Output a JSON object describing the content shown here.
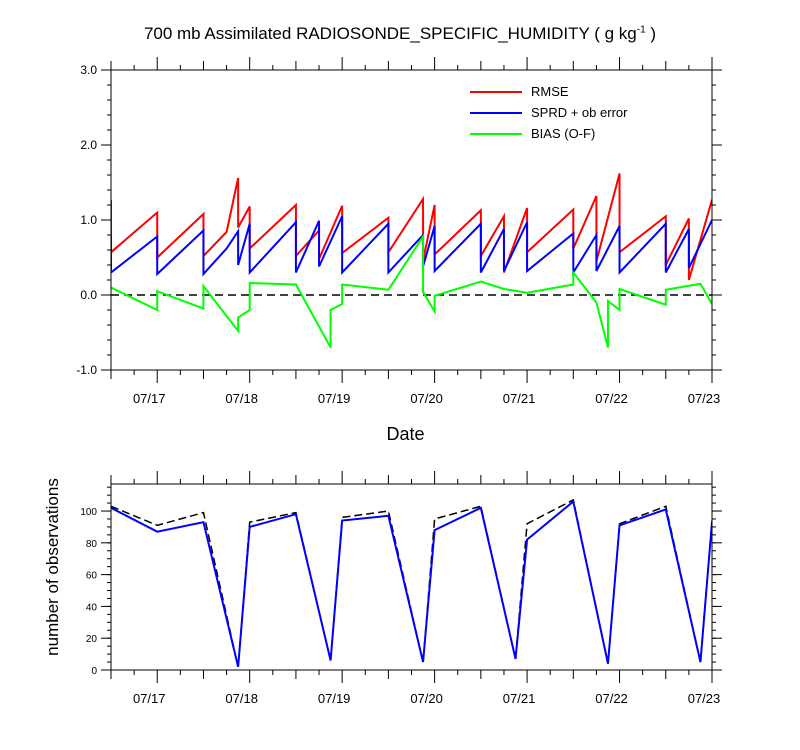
{
  "chart_data": [
    {
      "type": "line",
      "title": {
        "prefix": "700 mb Assimilated RADIOSONDE_SPECIFIC_HUMIDITY ( g kg",
        "sup": "-1",
        "suffix": " )"
      },
      "xlabel": "Date",
      "ylabel": "",
      "xlim": [
        "2023-07-16T12:00",
        "2023-07-23T00:00"
      ],
      "ylim": [
        -1.0,
        3.0
      ],
      "y_ticks": [
        -1.0,
        0.0,
        1.0,
        2.0,
        3.0
      ],
      "y_tick_labels": [
        "-1.0",
        "0.0",
        "1.0",
        "2.0",
        "3.0"
      ],
      "x_ticks": [
        "07/17",
        "07/18",
        "07/19",
        "07/20",
        "07/21",
        "07/22",
        "07/23"
      ],
      "grid": false,
      "legend": "top-right",
      "reference_line": {
        "y": 0.0,
        "style": "dashed",
        "color": "#000000"
      },
      "series": [
        {
          "name": "RMSE",
          "color": "#ff0000",
          "points": [
            [
              "2023-07-16T12:00",
              1.27
            ],
            [
              "2023-07-16T12:00",
              0.57
            ],
            [
              "2023-07-17T00:00",
              1.1
            ],
            [
              "2023-07-17T00:00",
              0.5
            ],
            [
              "2023-07-17T12:00",
              1.08
            ],
            [
              "2023-07-17T12:00",
              0.52
            ],
            [
              "2023-07-17T18:00",
              0.84
            ],
            [
              "2023-07-17T21:00",
              1.56
            ],
            [
              "2023-07-17T21:00",
              0.9
            ],
            [
              "2023-07-18T00:00",
              1.18
            ],
            [
              "2023-07-18T00:00",
              0.62
            ],
            [
              "2023-07-18T12:00",
              1.2
            ],
            [
              "2023-07-18T12:00",
              0.52
            ],
            [
              "2023-07-18T18:00",
              0.86
            ],
            [
              "2023-07-18T18:00",
              0.48
            ],
            [
              "2023-07-19T00:00",
              1.19
            ],
            [
              "2023-07-19T00:00",
              0.56
            ],
            [
              "2023-07-19T12:00",
              1.03
            ],
            [
              "2023-07-19T12:00",
              0.57
            ],
            [
              "2023-07-19T21:00",
              1.28
            ],
            [
              "2023-07-19T21:00",
              0.46
            ],
            [
              "2023-07-20T00:00",
              1.2
            ],
            [
              "2023-07-20T00:00",
              0.54
            ],
            [
              "2023-07-20T12:00",
              1.13
            ],
            [
              "2023-07-20T12:00",
              0.52
            ],
            [
              "2023-07-20T18:00",
              1.05
            ],
            [
              "2023-07-20T18:00",
              0.3
            ],
            [
              "2023-07-21T00:00",
              1.16
            ],
            [
              "2023-07-21T00:00",
              0.57
            ],
            [
              "2023-07-21T12:00",
              1.14
            ],
            [
              "2023-07-21T12:00",
              0.62
            ],
            [
              "2023-07-21T18:00",
              1.32
            ],
            [
              "2023-07-21T18:00",
              0.45
            ],
            [
              "2023-07-22T00:00",
              1.62
            ],
            [
              "2023-07-22T00:00",
              0.57
            ],
            [
              "2023-07-22T12:00",
              1.05
            ],
            [
              "2023-07-22T12:00",
              0.4
            ],
            [
              "2023-07-22T18:00",
              1.02
            ],
            [
              "2023-07-22T18:00",
              0.2
            ],
            [
              "2023-07-23T00:00",
              1.27
            ]
          ]
        },
        {
          "name": "SPRD + ob error",
          "color": "#0000ff",
          "points": [
            [
              "2023-07-16T12:00",
              0.78
            ],
            [
              "2023-07-16T12:00",
              0.3
            ],
            [
              "2023-07-17T00:00",
              0.78
            ],
            [
              "2023-07-17T00:00",
              0.28
            ],
            [
              "2023-07-17T12:00",
              0.86
            ],
            [
              "2023-07-17T12:00",
              0.28
            ],
            [
              "2023-07-17T18:00",
              0.62
            ],
            [
              "2023-07-17T21:00",
              0.85
            ],
            [
              "2023-07-17T21:00",
              0.4
            ],
            [
              "2023-07-18T00:00",
              0.95
            ],
            [
              "2023-07-18T00:00",
              0.3
            ],
            [
              "2023-07-18T12:00",
              0.97
            ],
            [
              "2023-07-18T12:00",
              0.3
            ],
            [
              "2023-07-18T18:00",
              0.99
            ],
            [
              "2023-07-18T18:00",
              0.38
            ],
            [
              "2023-07-19T00:00",
              1.05
            ],
            [
              "2023-07-19T00:00",
              0.3
            ],
            [
              "2023-07-19T12:00",
              0.95
            ],
            [
              "2023-07-19T12:00",
              0.3
            ],
            [
              "2023-07-19T21:00",
              0.8
            ],
            [
              "2023-07-19T21:00",
              0.38
            ],
            [
              "2023-07-20T00:00",
              0.92
            ],
            [
              "2023-07-20T00:00",
              0.32
            ],
            [
              "2023-07-20T12:00",
              0.95
            ],
            [
              "2023-07-20T12:00",
              0.3
            ],
            [
              "2023-07-20T18:00",
              0.88
            ],
            [
              "2023-07-20T18:00",
              0.32
            ],
            [
              "2023-07-21T00:00",
              0.97
            ],
            [
              "2023-07-21T00:00",
              0.32
            ],
            [
              "2023-07-21T12:00",
              0.82
            ],
            [
              "2023-07-21T12:00",
              0.3
            ],
            [
              "2023-07-21T18:00",
              0.8
            ],
            [
              "2023-07-21T18:00",
              0.32
            ],
            [
              "2023-07-22T00:00",
              0.92
            ],
            [
              "2023-07-22T00:00",
              0.3
            ],
            [
              "2023-07-22T12:00",
              0.95
            ],
            [
              "2023-07-22T12:00",
              0.3
            ],
            [
              "2023-07-22T18:00",
              0.88
            ],
            [
              "2023-07-22T18:00",
              0.36
            ],
            [
              "2023-07-23T00:00",
              1.0
            ]
          ]
        },
        {
          "name": "BIAS (O-F)",
          "color": "#00ff00",
          "points": [
            [
              "2023-07-16T12:00",
              0.1
            ],
            [
              "2023-07-17T00:00",
              -0.2
            ],
            [
              "2023-07-17T00:00",
              0.05
            ],
            [
              "2023-07-17T12:00",
              -0.18
            ],
            [
              "2023-07-17T12:00",
              0.12
            ],
            [
              "2023-07-17T21:00",
              -0.48
            ],
            [
              "2023-07-17T21:00",
              -0.3
            ],
            [
              "2023-07-18T00:00",
              -0.2
            ],
            [
              "2023-07-18T00:00",
              0.16
            ],
            [
              "2023-07-18T12:00",
              0.14
            ],
            [
              "2023-07-18T21:00",
              -0.7
            ],
            [
              "2023-07-18T21:00",
              -0.2
            ],
            [
              "2023-07-19T00:00",
              -0.12
            ],
            [
              "2023-07-19T00:00",
              0.14
            ],
            [
              "2023-07-19T12:00",
              0.07
            ],
            [
              "2023-07-19T21:00",
              0.78
            ],
            [
              "2023-07-19T21:00",
              0.04
            ],
            [
              "2023-07-20T00:00",
              -0.22
            ],
            [
              "2023-07-20T00:00",
              -0.01
            ],
            [
              "2023-07-20T12:00",
              0.18
            ],
            [
              "2023-07-20T18:00",
              0.08
            ],
            [
              "2023-07-21T00:00",
              0.03
            ],
            [
              "2023-07-21T12:00",
              0.14
            ],
            [
              "2023-07-21T12:00",
              0.3
            ],
            [
              "2023-07-21T18:00",
              -0.1
            ],
            [
              "2023-07-21T21:00",
              -0.7
            ],
            [
              "2023-07-21T21:00",
              -0.08
            ],
            [
              "2023-07-22T00:00",
              -0.2
            ],
            [
              "2023-07-22T00:00",
              0.08
            ],
            [
              "2023-07-22T12:00",
              -0.13
            ],
            [
              "2023-07-22T12:00",
              0.07
            ],
            [
              "2023-07-22T21:00",
              0.15
            ],
            [
              "2023-07-23T00:00",
              -0.12
            ]
          ]
        }
      ]
    },
    {
      "type": "line",
      "title": "",
      "xlabel": "",
      "ylabel": "number of observations",
      "xlim": [
        "2023-07-16T12:00",
        "2023-07-23T00:00"
      ],
      "ylim": [
        0,
        117
      ],
      "y_ticks": [
        0,
        20,
        40,
        60,
        80,
        100
      ],
      "y_tick_labels": [
        "0",
        "20",
        "40",
        "60",
        "80",
        "100"
      ],
      "x_ticks": [
        "07/17",
        "07/18",
        "07/19",
        "07/20",
        "07/21",
        "07/22",
        "07/23"
      ],
      "grid": false,
      "legend": "none",
      "series": [
        {
          "role": "possible",
          "color": "#000000",
          "style": "dashed",
          "points": [
            [
              "2023-07-16T12:00",
              103
            ],
            [
              "2023-07-17T00:00",
              91
            ],
            [
              "2023-07-17T12:00",
              99
            ],
            [
              "2023-07-17T21:00",
              2
            ],
            [
              "2023-07-18T00:00",
              93
            ],
            [
              "2023-07-18T12:00",
              99
            ],
            [
              "2023-07-18T21:00",
              6
            ],
            [
              "2023-07-19T00:00",
              96
            ],
            [
              "2023-07-19T12:00",
              100
            ],
            [
              "2023-07-19T21:00",
              5
            ],
            [
              "2023-07-20T00:00",
              95
            ],
            [
              "2023-07-20T12:00",
              103
            ],
            [
              "2023-07-20T21:00",
              7
            ],
            [
              "2023-07-21T00:00",
              92
            ],
            [
              "2023-07-21T12:00",
              107
            ],
            [
              "2023-07-21T21:00",
              4
            ],
            [
              "2023-07-22T00:00",
              92
            ],
            [
              "2023-07-22T12:00",
              103
            ],
            [
              "2023-07-22T21:00",
              5
            ],
            [
              "2023-07-23T00:00",
              94
            ]
          ]
        },
        {
          "role": "assimilated",
          "color": "#0000ff",
          "style": "solid",
          "points": [
            [
              "2023-07-16T12:00",
              102
            ],
            [
              "2023-07-17T00:00",
              87
            ],
            [
              "2023-07-17T12:00",
              93
            ],
            [
              "2023-07-17T21:00",
              2
            ],
            [
              "2023-07-18T00:00",
              90
            ],
            [
              "2023-07-18T12:00",
              98
            ],
            [
              "2023-07-18T21:00",
              6
            ],
            [
              "2023-07-19T00:00",
              94
            ],
            [
              "2023-07-19T12:00",
              97
            ],
            [
              "2023-07-19T21:00",
              5
            ],
            [
              "2023-07-20T00:00",
              88
            ],
            [
              "2023-07-20T12:00",
              102
            ],
            [
              "2023-07-20T21:00",
              7
            ],
            [
              "2023-07-21T00:00",
              82
            ],
            [
              "2023-07-21T12:00",
              106
            ],
            [
              "2023-07-21T21:00",
              4
            ],
            [
              "2023-07-22T00:00",
              91
            ],
            [
              "2023-07-22T12:00",
              101
            ],
            [
              "2023-07-22T21:00",
              5
            ],
            [
              "2023-07-23T00:00",
              93
            ]
          ]
        }
      ]
    }
  ]
}
